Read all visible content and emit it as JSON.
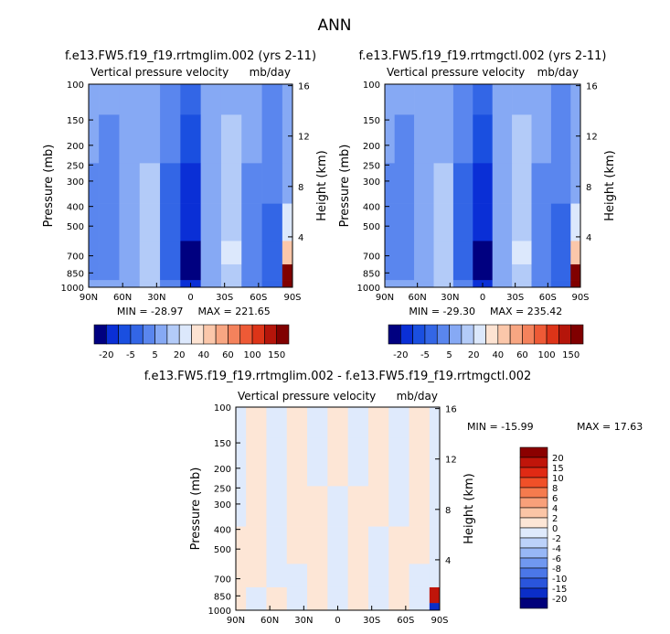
{
  "figure_title": "ANN",
  "panels": [
    {
      "case": "f.e13.FW5.f19_f19.rrtmglim.002 (yrs 2-11)",
      "field_label": "Vertical pressure velocity",
      "units": "mb/day",
      "min_text": "MIN = -28.97",
      "max_text": "MAX = 221.65"
    },
    {
      "case": "f.e13.FW5.f19_f19.rrtmgctl.002 (yrs 2-11)",
      "field_label": "Vertical pressure velocity",
      "units": "mb/day",
      "min_text": "MIN = -29.30",
      "max_text": "MAX = 235.42"
    },
    {
      "case": "f.e13.FW5.f19_f19.rrtmglim.002 - f.e13.FW5.f19_f19.rrtmgctl.002",
      "field_label": "Vertical pressure velocity",
      "units": "mb/day",
      "min_text": "MIN = -15.99",
      "max_text": "MAX =  17.63"
    }
  ],
  "axes": {
    "left_label": "Pressure (mb)",
    "right_label": "Height (km)",
    "pressure_ticks": [
      "100",
      "150",
      "200",
      "250",
      "300",
      "400",
      "500",
      "700",
      "850",
      "1000"
    ],
    "pressure_values": [
      100,
      150,
      200,
      250,
      300,
      400,
      500,
      700,
      850,
      1000
    ],
    "height_ticks": [
      "16",
      "12",
      "8",
      "4"
    ],
    "height_values": [
      16,
      12,
      8,
      4
    ],
    "lat_ticks": [
      "90N",
      "60N",
      "30N",
      "0",
      "30S",
      "60S",
      "90S"
    ]
  },
  "colorbars": {
    "field_levels": [
      "-20",
      "-5",
      "5",
      "20",
      "40",
      "60",
      "100",
      "150"
    ],
    "field_colors": [
      "#000080",
      "#0a2fd6",
      "#1a4fe0",
      "#3366e6",
      "#5a86ee",
      "#86a9f4",
      "#b3cbf8",
      "#dce8fc",
      "#fde3d2",
      "#fbc7aa",
      "#f8a682",
      "#f4825c",
      "#ee5a36",
      "#dd3418",
      "#b5150a",
      "#800000"
    ],
    "diff_levels": [
      "20",
      "15",
      "10",
      "8",
      "6",
      "4",
      "2",
      "0",
      "-2",
      "-4",
      "-6",
      "-8",
      "-10",
      "-15",
      "-20"
    ],
    "diff_colors": [
      "#8b0000",
      "#c0150a",
      "#e02a14",
      "#f05028",
      "#f57b4e",
      "#f8a07a",
      "#fbc5a6",
      "#fde6d6",
      "#dfeafc",
      "#bcd2fa",
      "#97b7f6",
      "#7098f0",
      "#4b77e8",
      "#2a55dc",
      "#0b2ec8",
      "#00007a"
    ]
  },
  "chart_data": [
    {
      "type": "heatmap",
      "title": "f.e13.FW5.f19_f19.rrtmglim.002 (yrs 2-11)",
      "subtitle": "Vertical pressure velocity mb/day",
      "xlabel": "",
      "ylabel": "Pressure (mb)",
      "y2label": "Height (km)",
      "x_range": [
        90,
        -90
      ],
      "y_range": [
        100,
        1000
      ],
      "y_scale": "log",
      "min": -28.97,
      "max": 221.65,
      "x": [
        90,
        72,
        54,
        36,
        18,
        0,
        -18,
        -36,
        -54,
        -72,
        -90
      ],
      "y": [
        100,
        200,
        300,
        500,
        700,
        850,
        1000
      ],
      "values": [
        [
          -4,
          -5,
          -3,
          -2,
          -9,
          -14,
          -3,
          -2,
          -4,
          -6,
          -3
        ],
        [
          -5,
          -6,
          -4,
          -1,
          -10,
          -18,
          -4,
          0,
          -5,
          -8,
          -4
        ],
        [
          -6,
          -6,
          -5,
          2,
          -12,
          -22,
          -5,
          2,
          -6,
          -10,
          -5
        ],
        [
          -7,
          -7,
          -5,
          4,
          -13,
          -25,
          -5,
          4,
          -7,
          -12,
          6
        ],
        [
          -7,
          -7,
          -5,
          3,
          -14,
          -27,
          -5,
          5,
          -8,
          -13,
          20
        ],
        [
          -6,
          -6,
          -4,
          2,
          -13,
          -28,
          -5,
          4,
          -8,
          -14,
          100
        ],
        [
          -5,
          -5,
          -3,
          1,
          -10,
          -24,
          -4,
          3,
          -6,
          -12,
          221
        ]
      ]
    },
    {
      "type": "heatmap",
      "title": "f.e13.FW5.f19_f19.rrtmgctl.002 (yrs 2-11)",
      "subtitle": "Vertical pressure velocity mb/day",
      "xlabel": "",
      "ylabel": "Pressure (mb)",
      "y2label": "Height (km)",
      "x_range": [
        90,
        -90
      ],
      "y_range": [
        100,
        1000
      ],
      "y_scale": "log",
      "min": -29.3,
      "max": 235.42,
      "x": [
        90,
        72,
        54,
        36,
        18,
        0,
        -18,
        -36,
        -54,
        -72,
        -90
      ],
      "y": [
        100,
        200,
        300,
        500,
        700,
        850,
        1000
      ],
      "values": [
        [
          -4,
          -5,
          -3,
          -2,
          -9,
          -14,
          -3,
          -2,
          -4,
          -6,
          -3
        ],
        [
          -5,
          -6,
          -4,
          -1,
          -10,
          -18,
          -4,
          0,
          -5,
          -8,
          -4
        ],
        [
          -6,
          -6,
          -5,
          2,
          -12,
          -22,
          -5,
          2,
          -6,
          -10,
          -5
        ],
        [
          -7,
          -7,
          -5,
          4,
          -13,
          -25,
          -5,
          4,
          -7,
          -12,
          6
        ],
        [
          -7,
          -7,
          -5,
          3,
          -14,
          -28,
          -5,
          5,
          -8,
          -13,
          22
        ],
        [
          -6,
          -6,
          -4,
          2,
          -13,
          -29,
          -5,
          4,
          -8,
          -14,
          110
        ],
        [
          -5,
          -5,
          -3,
          1,
          -10,
          -25,
          -4,
          3,
          -6,
          -12,
          235
        ]
      ]
    },
    {
      "type": "heatmap",
      "title": "f.e13.FW5.f19_f19.rrtmglim.002 - f.e13.FW5.f19_f19.rrtmgctl.002",
      "subtitle": "Vertical pressure velocity mb/day",
      "xlabel": "",
      "ylabel": "Pressure (mb)",
      "y2label": "Height (km)",
      "x_range": [
        90,
        -90
      ],
      "y_range": [
        100,
        1000
      ],
      "y_scale": "log",
      "min": -15.99,
      "max": 17.63,
      "x": [
        90,
        72,
        54,
        36,
        18,
        0,
        -18,
        -36,
        -54,
        -72,
        -90
      ],
      "y": [
        100,
        200,
        300,
        500,
        700,
        850,
        1000
      ],
      "values": [
        [
          -0.5,
          0.5,
          -0.5,
          0.5,
          -0.5,
          0.5,
          -0.5,
          0.5,
          -0.5,
          0.5,
          -0.5
        ],
        [
          -0.5,
          0.5,
          -0.5,
          0.5,
          -0.5,
          0.5,
          -0.5,
          0.5,
          -0.5,
          0.5,
          -0.5
        ],
        [
          -0.5,
          0.5,
          -0.5,
          0.5,
          0.5,
          -0.5,
          0.5,
          0.5,
          -0.5,
          0.5,
          -0.5
        ],
        [
          0.5,
          0.5,
          -0.5,
          0.5,
          0.5,
          -0.5,
          0.5,
          -0.5,
          0.5,
          0.5,
          -0.5
        ],
        [
          0.5,
          0.5,
          -0.5,
          -0.5,
          0.5,
          -0.5,
          0.5,
          -0.5,
          0.5,
          -0.5,
          -0.5
        ],
        [
          0.5,
          -0.5,
          0.5,
          -0.5,
          0.5,
          -0.5,
          0.5,
          -0.5,
          0.5,
          -0.5,
          17.63
        ],
        [
          0.5,
          -0.5,
          0.5,
          -0.5,
          0.5,
          -0.5,
          0.5,
          -0.5,
          0.5,
          -0.5,
          -15.99
        ]
      ]
    }
  ]
}
